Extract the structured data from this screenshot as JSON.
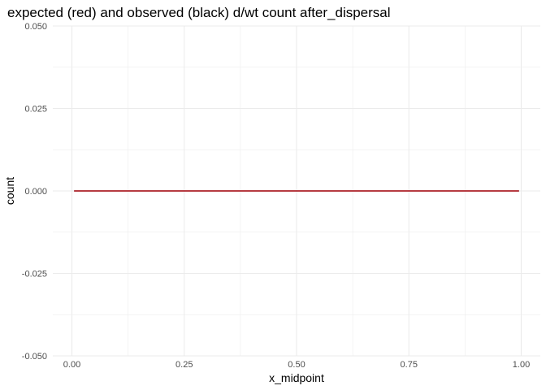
{
  "chart_data": {
    "type": "line",
    "title": "expected (red) and observed (black) d/wt count after_dispersal",
    "xlabel": "x_midpoint",
    "ylabel": "count",
    "xlim": [
      -0.0425,
      1.0425
    ],
    "ylim": [
      -0.05,
      0.05
    ],
    "x_ticks": [
      0.0,
      0.25,
      0.5,
      0.75,
      1.0
    ],
    "x_tick_labels": [
      "0.00",
      "0.25",
      "0.50",
      "0.75",
      "1.00"
    ],
    "y_ticks": [
      -0.05,
      -0.025,
      0.0,
      0.025,
      0.05
    ],
    "y_tick_labels": [
      "-0.050",
      "-0.025",
      "0.000",
      "0.025",
      "0.050"
    ],
    "grid": true,
    "series": [
      {
        "color": "#000000",
        "x": [
          0.005,
          0.995
        ],
        "y": [
          0,
          0
        ]
      },
      {
        "color": "#c8262f",
        "x": [
          0.005,
          0.995
        ],
        "y": [
          0,
          0
        ]
      }
    ]
  }
}
